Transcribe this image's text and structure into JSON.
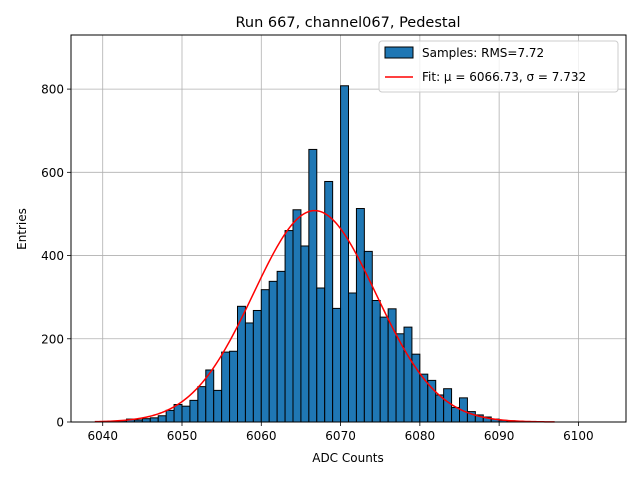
{
  "chart_data": {
    "type": "bar",
    "title": "Run 667, channel067, Pedestal",
    "xlabel": "ADC Counts",
    "ylabel": "Entries",
    "xlim": [
      6036,
      6106
    ],
    "ylim": [
      0,
      930
    ],
    "xticks": [
      6040,
      6050,
      6060,
      6070,
      6080,
      6090,
      6100
    ],
    "yticks": [
      0,
      200,
      400,
      600,
      800
    ],
    "grid": true,
    "legend_position": "top-right",
    "colors": {
      "bars": "#1f77b4",
      "bar_edge": "#000000",
      "fit": "#ff0000",
      "grid": "#b0b0b0"
    },
    "histogram": {
      "name": "Samples: RMS=7.72",
      "bin_width": 1,
      "bin_starts": [
        6039,
        6040,
        6041,
        6042,
        6043,
        6044,
        6045,
        6046,
        6047,
        6048,
        6049,
        6050,
        6051,
        6052,
        6053,
        6054,
        6055,
        6056,
        6057,
        6058,
        6059,
        6060,
        6061,
        6062,
        6063,
        6064,
        6065,
        6066,
        6067,
        6068,
        6069,
        6070,
        6071,
        6072,
        6073,
        6074,
        6075,
        6076,
        6077,
        6078,
        6079,
        6080,
        6081,
        6082,
        6083,
        6084,
        6085,
        6086,
        6087,
        6088,
        6089,
        6090,
        6091,
        6092,
        6093,
        6094,
        6095,
        6096,
        6097,
        6098,
        6099,
        6100,
        6101,
        6102
      ],
      "values": [
        0,
        1,
        2,
        3,
        7,
        5,
        8,
        10,
        15,
        28,
        42,
        38,
        52,
        85,
        125,
        76,
        168,
        170,
        278,
        238,
        268,
        318,
        338,
        362,
        460,
        510,
        423,
        655,
        322,
        578,
        273,
        808,
        310,
        513,
        410,
        292,
        252,
        272,
        212,
        228,
        163,
        115,
        100,
        65,
        80,
        35,
        58,
        25,
        17,
        12,
        7,
        4,
        3,
        2,
        1,
        1,
        0,
        0,
        0,
        0,
        0,
        0,
        0,
        0
      ]
    },
    "fit": {
      "name": "Fit: μ = 6066.73, σ = 7.732",
      "mu": 6066.73,
      "sigma": 7.732,
      "amplitude": 508,
      "x_range": [
        6039,
        6097
      ]
    }
  }
}
